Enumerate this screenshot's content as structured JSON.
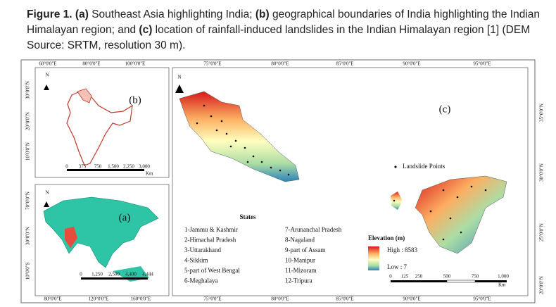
{
  "caption": [
    {
      "text": "Figure 1.",
      "bold": true
    },
    {
      "text": "(a)",
      "bold": true
    },
    {
      "text": "Southeast Asia highlighting India;",
      "bold": false
    },
    {
      "text": "(b)",
      "bold": true
    },
    {
      "text": "geographical boundaries of India highlighting the Indian Himalayan region; and",
      "bold": false
    },
    {
      "text": "(c)",
      "bold": true
    },
    {
      "text": "location of rainfall-induced landslides in the Indian Himalayan region [1] (DEM Source: SRTM, resolution 30 m).",
      "bold": false
    }
  ],
  "panels": {
    "a": {
      "label": "(a)",
      "north": "N",
      "bottom_ticks": [
        "80°0'0\"E",
        "120°0'0\"E",
        "160°0'0\"E"
      ],
      "left_ticks": [
        "70°0'0\"N",
        "30°0'0\"N",
        "10°0'0\"S"
      ],
      "scale": [
        "0",
        "1,250",
        "2,500",
        "4,400",
        "4,444"
      ]
    },
    "b": {
      "label": "(b)",
      "north": "N",
      "top_ticks": [
        "60°0'0\"E",
        "80°0'0\"E",
        "100°0'0\"E"
      ],
      "left_ticks": [
        "30°0'0\"N",
        "20°0'0\"N",
        "10°0'0\"N"
      ],
      "scale": [
        "0",
        "375",
        "750",
        "1,500",
        "2,250",
        "3,000"
      ],
      "scale_unit": "Km"
    },
    "c": {
      "label": "(c)",
      "north": "N",
      "top_ticks": [
        "75°0'0\"E",
        "80°0'0\"E",
        "85°0'0\"E",
        "90°0'0\"E",
        "95°0'0\"E"
      ],
      "bottom_ticks": [
        "75°0'0\"E",
        "80°0'0\"E",
        "85°0'0\"E",
        "90°0'0\"E",
        "95°0'0\"E"
      ],
      "right_ticks": [
        "35°0'0\"N",
        "30°0'0\"N",
        "25°0'0\"N",
        "20°0'0\"N"
      ],
      "legend_points": "Landslide Points",
      "states_title": "States",
      "states_col1": [
        "1-Jammu & Kashmir",
        "2-Himachal Pradesh",
        "3-Uttarakhand",
        "4-Sikkim",
        "5-part of West Bengal",
        "6-Meghalaya"
      ],
      "states_col2": [
        "7-Arunanchal Pradesh",
        "8-Nagaland",
        "9-part of Assam",
        "10-Manipur",
        "11-Mizoram",
        "12-Tripura"
      ],
      "elevation": {
        "title": "Elevation (m)",
        "high": "High : 8583",
        "low": "Low : 7"
      },
      "scale": [
        "0",
        "125",
        "250",
        "500",
        "750",
        "1,000"
      ],
      "scale_unit": "Km"
    }
  }
}
